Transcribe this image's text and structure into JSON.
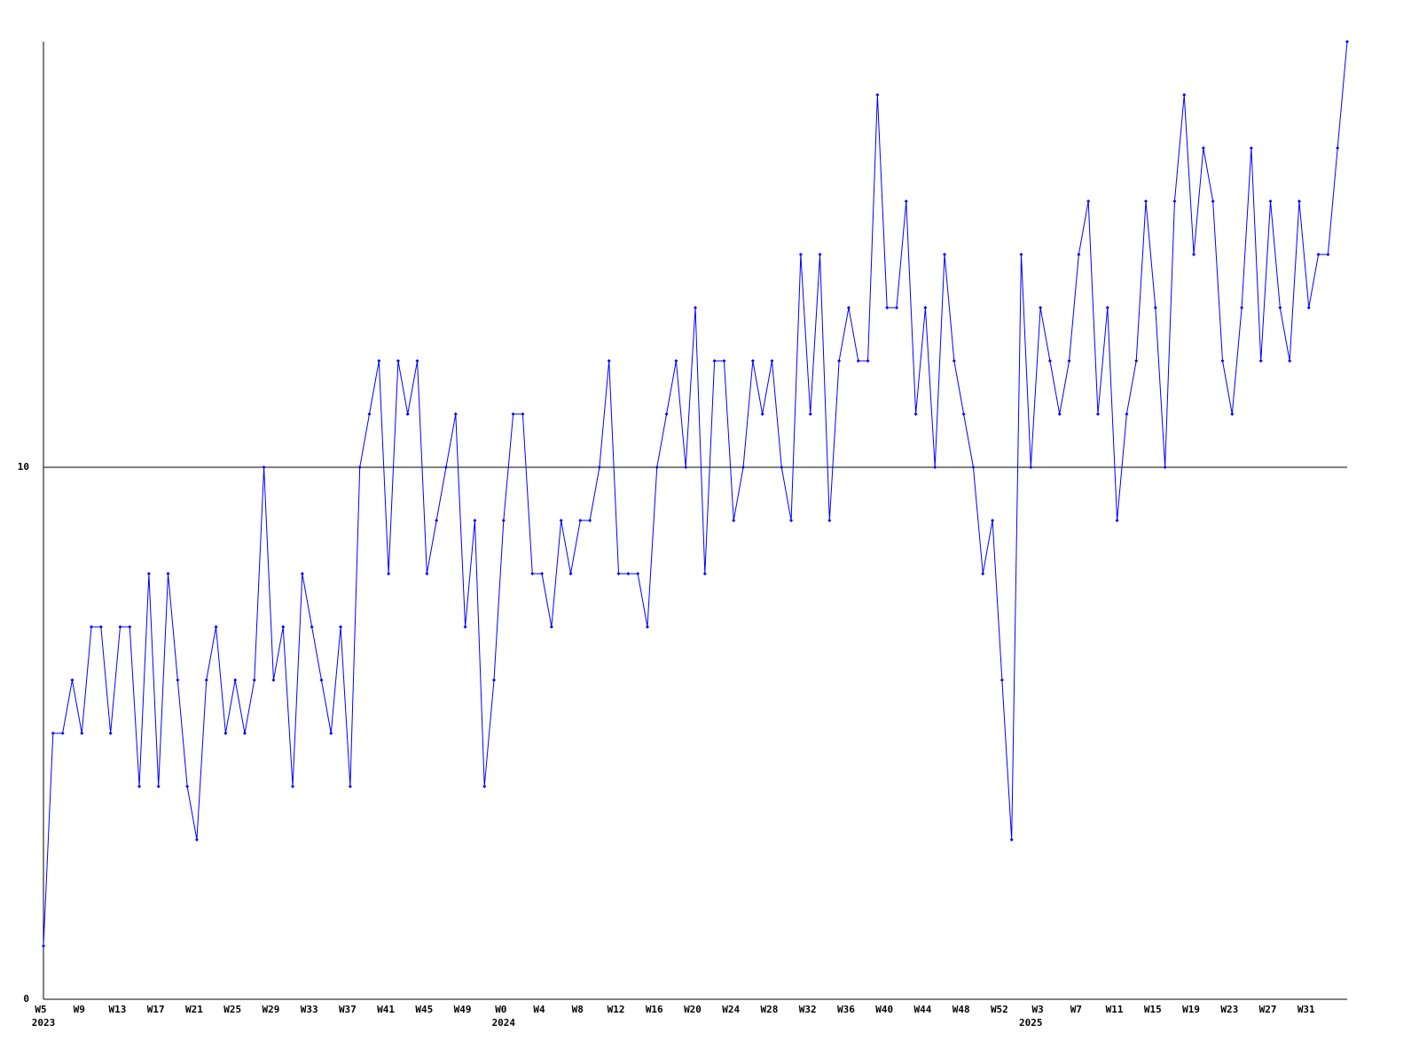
{
  "chart_data": {
    "type": "line",
    "categories": [
      "W5",
      null,
      null,
      null,
      "W9",
      null,
      null,
      null,
      "W13",
      null,
      null,
      null,
      "W17",
      null,
      null,
      null,
      "W21",
      null,
      null,
      null,
      "W25",
      null,
      null,
      null,
      "W29",
      null,
      null,
      null,
      "W33",
      null,
      null,
      null,
      "W37",
      null,
      null,
      null,
      "W41",
      null,
      null,
      null,
      "W45",
      null,
      null,
      null,
      "W49",
      null,
      null,
      null,
      "W0",
      null,
      null,
      null,
      "W4",
      null,
      null,
      null,
      "W8",
      null,
      null,
      null,
      "W12",
      null,
      null,
      null,
      "W16",
      null,
      null,
      null,
      "W20",
      null,
      null,
      null,
      "W24",
      null,
      null,
      null,
      "W28",
      null,
      null,
      null,
      "W32",
      null,
      null,
      null,
      "W36",
      null,
      null,
      null,
      "W40",
      null,
      null,
      null,
      "W44",
      null,
      null,
      null,
      "W48",
      null,
      null,
      null,
      "W52",
      null,
      null,
      null,
      "W3",
      null,
      null,
      null,
      "W7",
      null,
      null,
      null,
      "W11",
      null,
      null,
      null,
      "W15",
      null,
      null,
      null,
      "W19",
      null,
      null,
      null,
      "W23",
      null,
      null,
      null,
      "W27",
      null,
      null,
      null,
      "W31",
      null,
      null,
      null,
      null
    ],
    "year_labels": [
      "2023",
      null,
      null,
      null,
      null,
      null,
      null,
      null,
      null,
      null,
      null,
      null,
      null,
      null,
      null,
      null,
      null,
      null,
      null,
      null,
      null,
      null,
      null,
      null,
      null,
      null,
      null,
      null,
      null,
      null,
      null,
      null,
      null,
      null,
      null,
      null,
      null,
      null,
      null,
      null,
      null,
      null,
      null,
      null,
      null,
      null,
      null,
      null,
      "2024",
      null,
      null,
      null,
      null,
      null,
      null,
      null,
      null,
      null,
      null,
      null,
      null,
      null,
      null,
      null,
      null,
      null,
      null,
      null,
      null,
      null,
      null,
      null,
      null,
      null,
      null,
      null,
      null,
      null,
      null,
      null,
      null,
      null,
      null,
      null,
      null,
      null,
      null,
      null,
      null,
      null,
      null,
      null,
      null,
      null,
      null,
      null,
      null,
      null,
      null,
      null,
      null,
      null,
      null,
      "2025",
      null,
      null,
      null,
      null,
      null,
      null,
      null,
      null,
      null,
      null,
      null,
      null,
      null,
      null,
      null,
      null,
      null,
      null,
      null,
      null,
      null,
      null,
      null,
      null,
      null,
      null,
      null,
      null,
      null,
      null,
      null,
      null,
      null,
      null,
      null
    ],
    "series": [
      {
        "color": "#0000ff",
        "values": [
          1,
          5,
          5,
          6,
          5,
          7,
          7,
          5,
          7,
          7,
          4,
          8,
          4,
          8,
          6,
          4,
          3,
          6,
          7,
          5,
          6,
          5,
          6,
          10,
          6,
          7,
          4,
          8,
          7,
          6,
          5,
          7,
          4,
          10,
          11,
          12,
          8,
          12,
          11,
          12,
          8,
          9,
          10,
          11,
          7,
          9,
          4,
          6,
          9,
          11,
          11,
          8,
          8,
          7,
          9,
          8,
          9,
          9,
          10,
          12,
          8,
          8,
          8,
          7,
          10,
          11,
          12,
          10,
          13,
          8,
          12,
          12,
          9,
          10,
          12,
          11,
          12,
          10,
          9,
          14,
          11,
          14,
          9,
          12,
          13,
          12,
          12,
          17,
          13,
          13,
          15,
          11,
          13,
          10,
          14,
          12,
          11,
          10,
          8,
          9,
          6,
          3,
          14,
          10,
          13,
          12,
          11,
          12,
          14,
          15,
          11,
          13,
          9,
          11,
          12,
          15,
          13,
          10,
          15,
          17,
          14,
          16,
          15,
          12,
          11,
          13,
          16,
          12,
          15,
          13,
          12,
          15,
          13,
          14,
          14,
          16,
          18
        ]
      }
    ],
    "ylim": [
      0,
      18
    ],
    "yticks": [
      0,
      10
    ],
    "grid": true
  }
}
